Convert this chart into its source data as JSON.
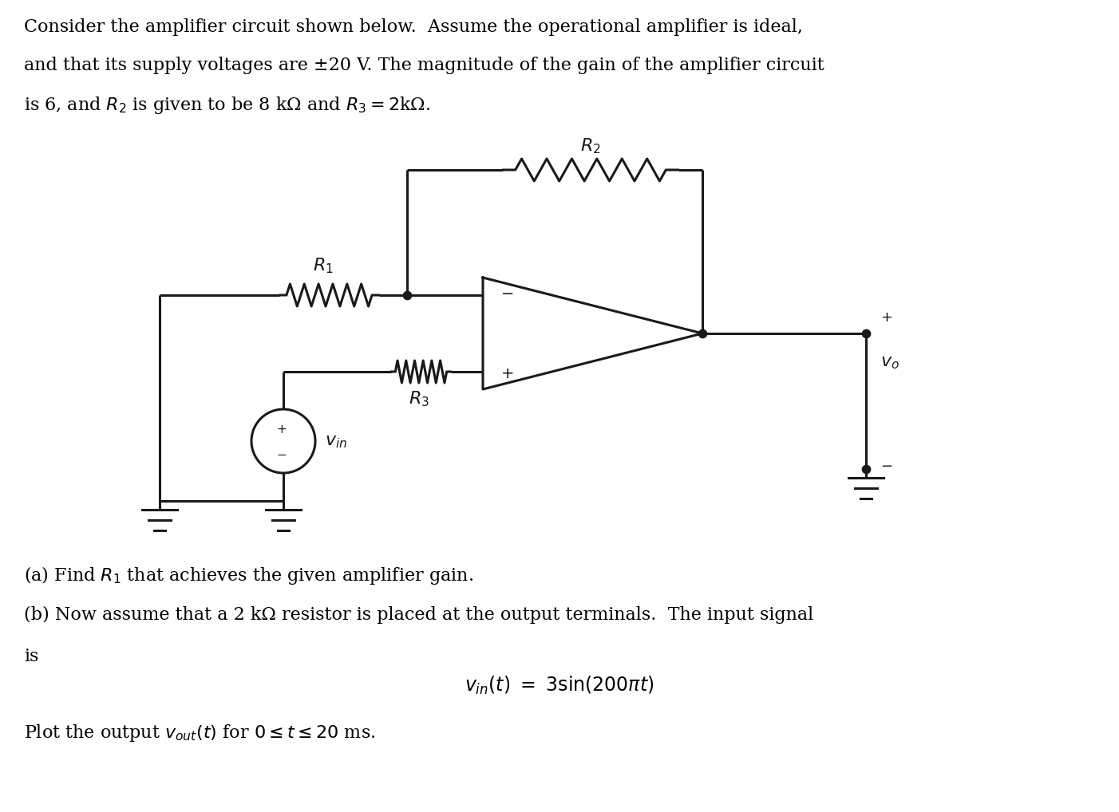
{
  "bg_color": "#ffffff",
  "line_color": "#1a1a1a",
  "text_color": "#000000",
  "figsize": [
    14.02,
    10.18
  ],
  "dpi": 100,
  "header_text_line1": "Consider the amplifier circuit shown below.  Assume the operational amplifier is ideal,",
  "header_text_line2": "and that its supply voltages are ±20 V. The magnitude of the gain of the amplifier circuit",
  "header_text_line3": "is 6, and $R_2$ is given to be 8 kΩ and $R_3 = 2$kΩ.",
  "footer_text_a": "(a) Find $R_1$ that achieves the given amplifier gain.",
  "footer_text_b": "(b) Now assume that a 2 kΩ resistor is placed at the output terminals.  The input signal",
  "footer_text_b2": "is",
  "footer_eq": "$v_{in}(t) \\ = \\ 3\\sin(200\\pi t)$",
  "footer_plot": "Plot the output $v_{out}(t)$ for $0 \\leq t \\leq 20$ ms.",
  "font_size_header": 16,
  "font_size_body": 16
}
